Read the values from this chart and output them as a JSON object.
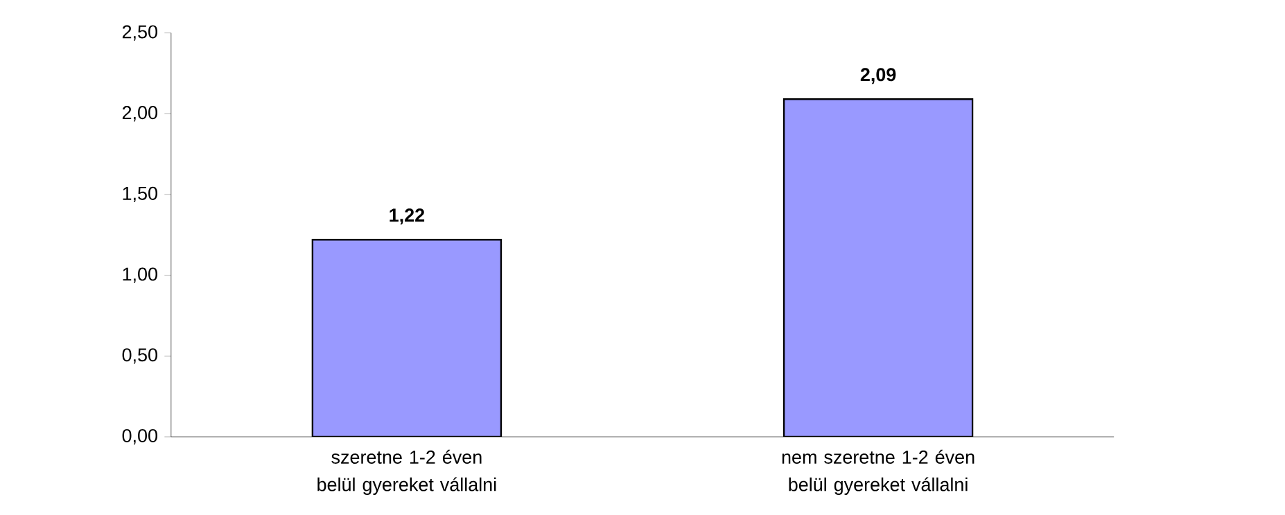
{
  "chart_data": {
    "type": "bar",
    "categories": [
      "szeretne 1-2 éven belül gyereket vállalni",
      "nem szeretne 1-2 éven belül gyereket vállalni"
    ],
    "values": [
      1.22,
      2.09
    ],
    "color": "#9999ff",
    "value_labels": [
      "1,22",
      "2,09"
    ],
    "ylim": [
      0,
      2.5
    ],
    "yticks": [
      {
        "value": 0,
        "label": "0,00"
      },
      {
        "value": 0.5,
        "label": "0,50"
      },
      {
        "value": 1,
        "label": "1,00"
      },
      {
        "value": 1.5,
        "label": "1,50"
      },
      {
        "value": 2,
        "label": "2,00"
      },
      {
        "value": 2.5,
        "label": "2,50"
      }
    ]
  }
}
